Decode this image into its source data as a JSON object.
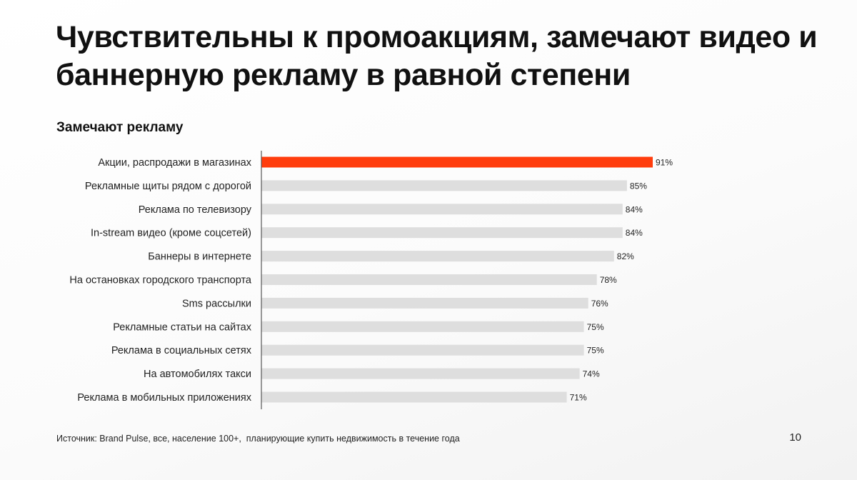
{
  "slide": {
    "title": "Чувствительны к промоакциям, замечают видео и баннерную рекламу в равной степени",
    "source": "Источник: Brand Pulse, все, население 100+,  планирующие купить недвижимость в течение года",
    "page_number": "10"
  },
  "colors": {
    "highlight": "#FF3D0D",
    "bar": "#DEDEDE",
    "axis": "#555555",
    "text": "#111111"
  },
  "chart_data": {
    "type": "bar",
    "orientation": "horizontal",
    "title": "Замечают рекламу",
    "unit": "%",
    "xlim": [
      0,
      100
    ],
    "grid": false,
    "legend": "none",
    "categories": [
      "Акции, распродажи в магазинах",
      "Рекламные щиты рядом с дорогой",
      "Реклама по телевизору",
      "In-stream видео (кроме соцсетей)",
      "Баннеры в интернете",
      "На остановках городского транспорта",
      "Sms рассылки",
      "Рекламные статьи на сайтах",
      "Реклама в социальных сетях",
      "На автомобилях такси",
      "Реклама в мобильных приложениях"
    ],
    "values": [
      91,
      85,
      84,
      84,
      82,
      78,
      76,
      75,
      75,
      74,
      71
    ],
    "value_labels": [
      "91%",
      "85%",
      "84%",
      "84%",
      "82%",
      "78%",
      "76%",
      "75%",
      "75%",
      "74%",
      "71%"
    ],
    "highlighted_index": 0
  }
}
